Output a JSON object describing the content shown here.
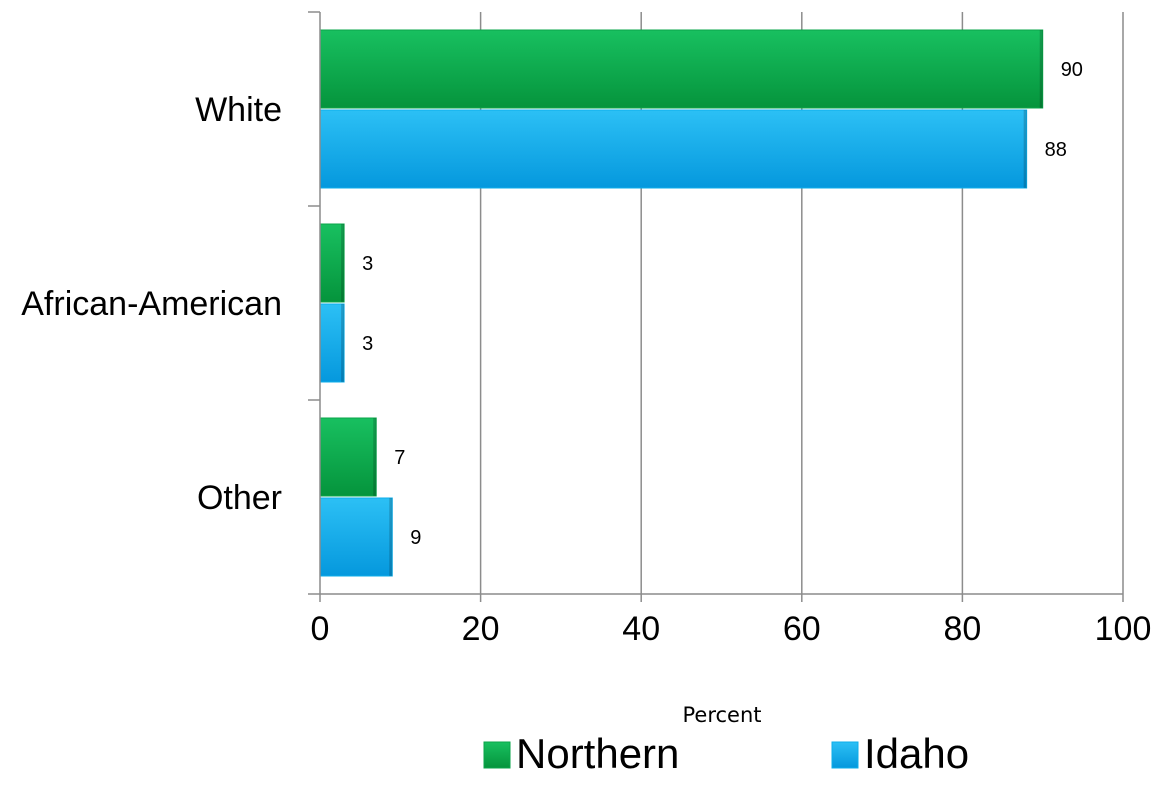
{
  "chart_data": {
    "type": "bar",
    "orientation": "horizontal",
    "categories": [
      "White",
      "African-American",
      "Other"
    ],
    "series": [
      {
        "name": "Northern",
        "values": [
          90,
          3,
          7
        ],
        "color": "#0aa54a"
      },
      {
        "name": "Idaho",
        "values": [
          88,
          3,
          9
        ],
        "color": "#0daeea"
      }
    ],
    "xlabel": "Percent",
    "ylabel": "",
    "xlim": [
      0,
      100
    ],
    "xticks": [
      0,
      20,
      40,
      60,
      80,
      100
    ],
    "data_labels": true,
    "grid": "vertical",
    "legend": "bottom"
  }
}
